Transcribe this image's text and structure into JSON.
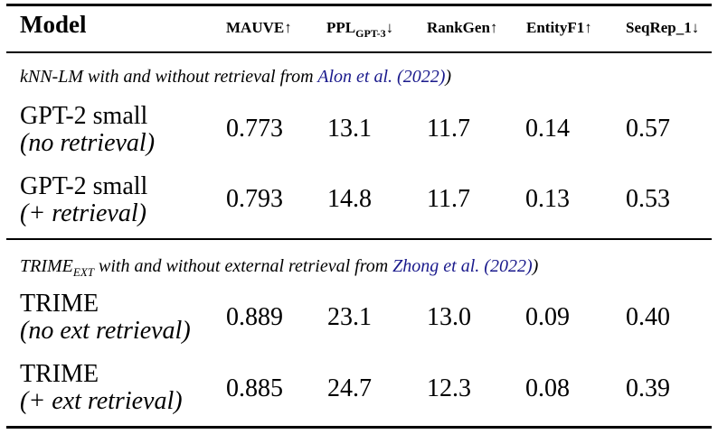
{
  "header": {
    "model": "Model",
    "mauve": "MAUVE↑",
    "ppl_main": "PPL",
    "ppl_sub": "GPT-3",
    "ppl_arrow": "↓",
    "rankgen": "RankGen↑",
    "entityf1": "EntityF1↑",
    "seqrep": "SeqRep_1↓"
  },
  "sections": [
    {
      "caption_main": "kNN-LM with and without retrieval from ",
      "caption_sub": "",
      "caption_rest": "",
      "cite_authors": "Alon et al.",
      "cite_year": "(2022)",
      "close": ")",
      "rows": [
        {
          "name": "GPT-2 small",
          "variant": "(no retrieval)",
          "mauve": "0.773",
          "ppl": "13.1",
          "rankgen": "11.7",
          "entityf1": "0.14",
          "seqrep": "0.57"
        },
        {
          "name": "GPT-2 small",
          "variant": "(+ retrieval)",
          "mauve": "0.793",
          "ppl": "14.8",
          "rankgen": "11.7",
          "entityf1": "0.13",
          "seqrep": "0.53"
        }
      ]
    },
    {
      "caption_main": "TRIME",
      "caption_sub": "EXT",
      "caption_rest": " with and without external retrieval from ",
      "cite_authors": "Zhong et al.",
      "cite_year": "(2022)",
      "close": ")",
      "rows": [
        {
          "name": "TRIME",
          "variant": "(no ext retrieval)",
          "mauve": "0.889",
          "ppl": "23.1",
          "rankgen": "13.0",
          "entityf1": "0.09",
          "seqrep": "0.40"
        },
        {
          "name": "TRIME",
          "variant": "(+ ext retrieval)",
          "mauve": "0.885",
          "ppl": "24.7",
          "rankgen": "12.3",
          "entityf1": "0.08",
          "seqrep": "0.39"
        }
      ]
    }
  ]
}
